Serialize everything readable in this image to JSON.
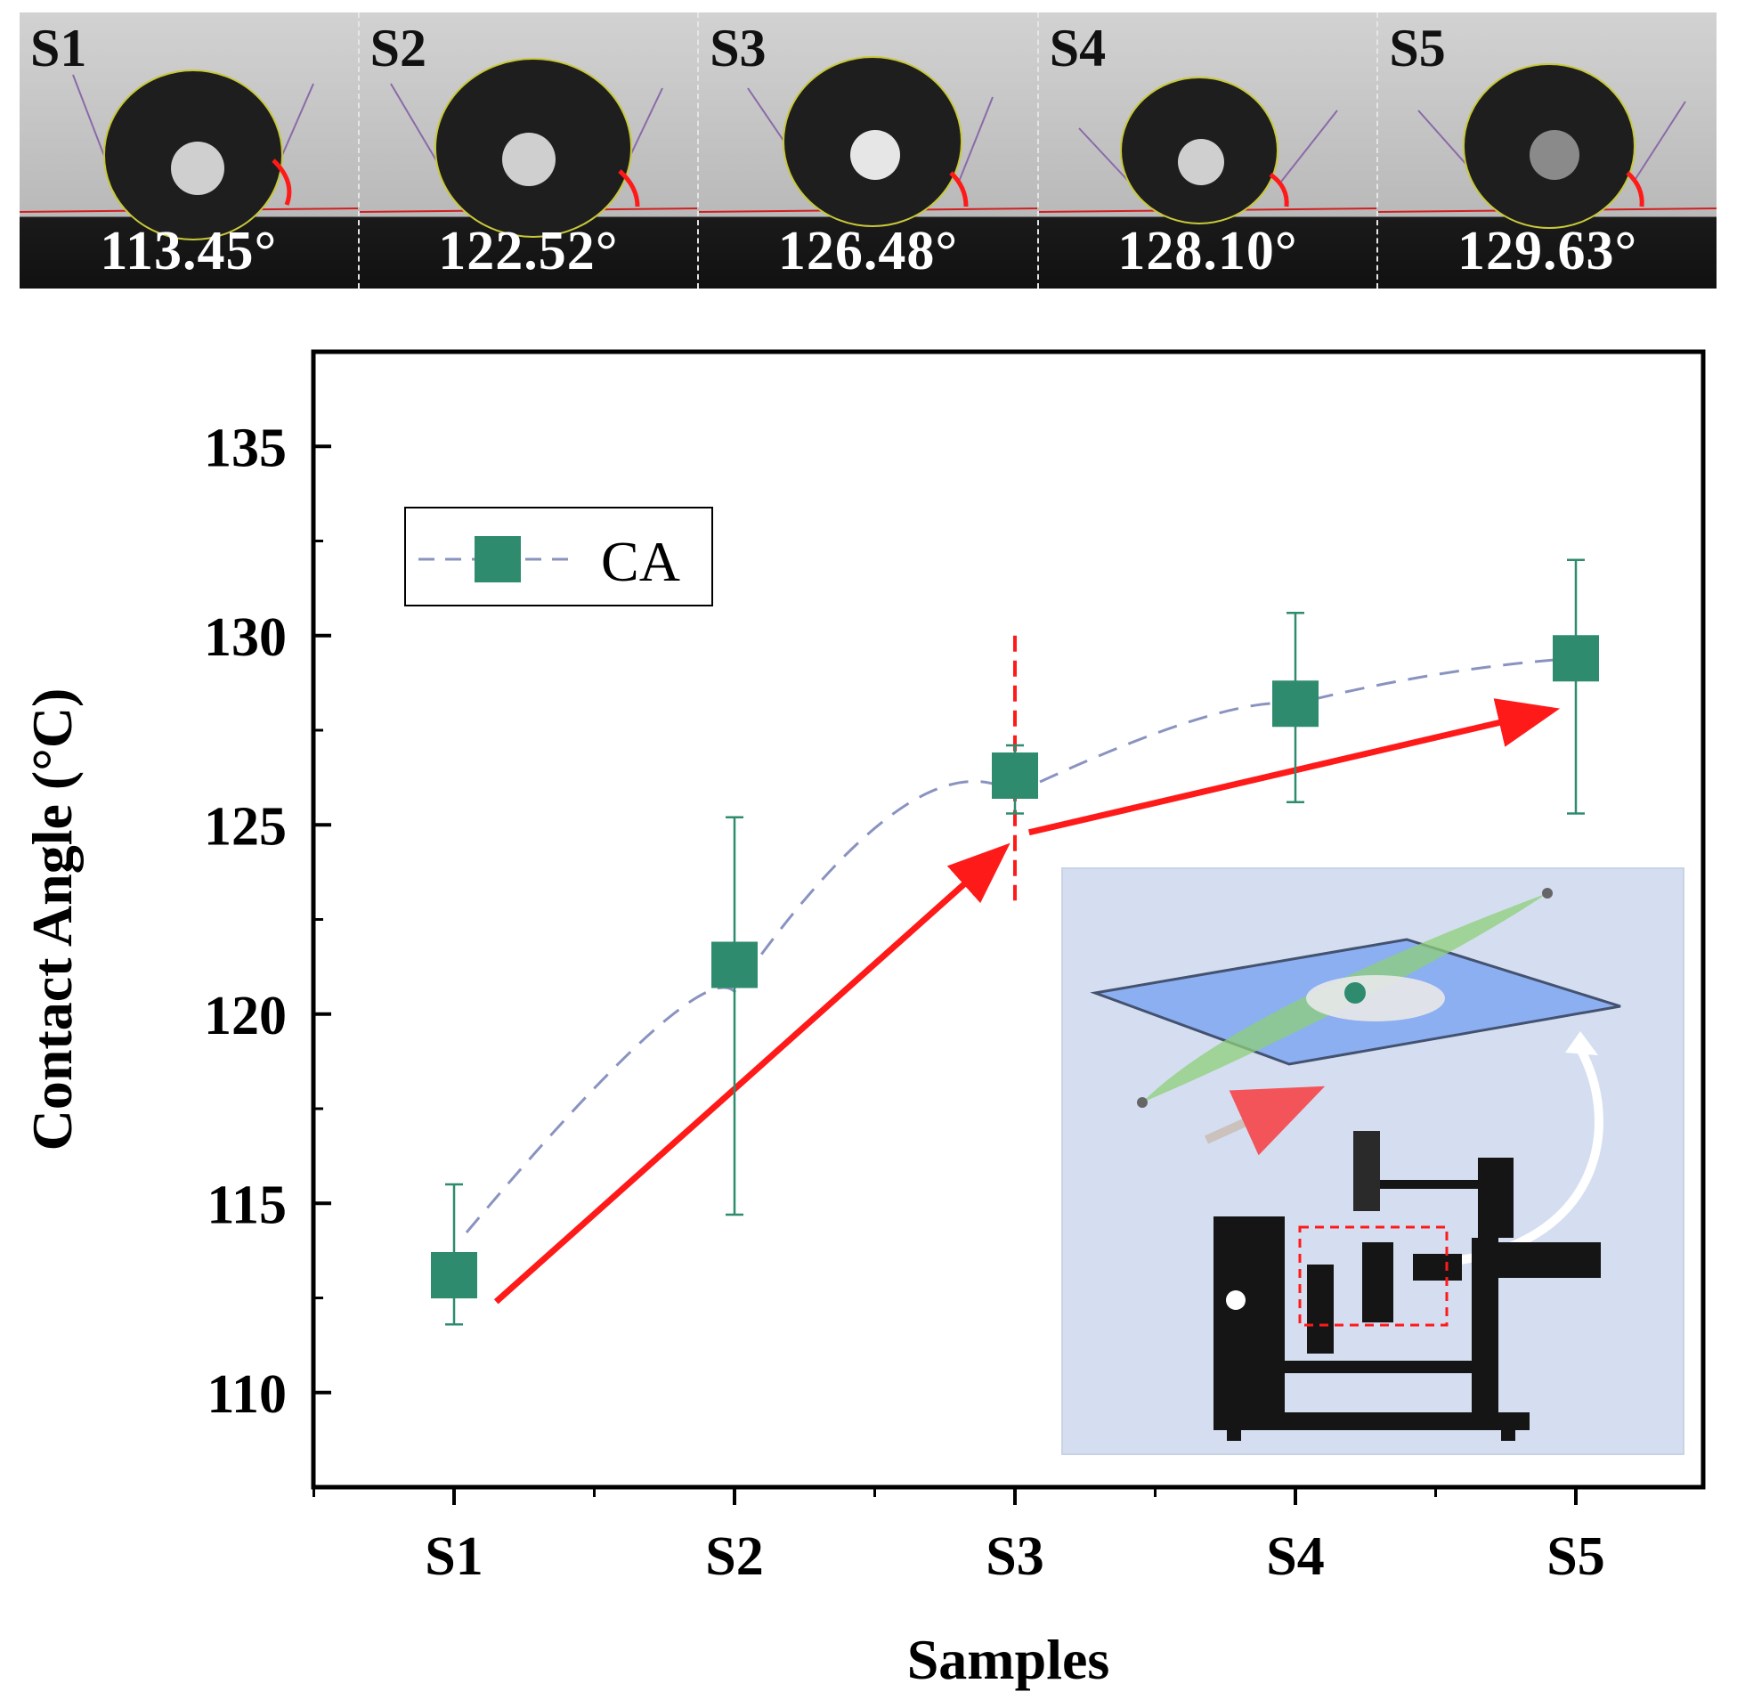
{
  "panels": [
    {
      "label": "S1",
      "angle_text": "113.45°"
    },
    {
      "label": "S2",
      "angle_text": "122.52°"
    },
    {
      "label": "S3",
      "angle_text": "126.48°"
    },
    {
      "label": "S4",
      "angle_text": "128.10°"
    },
    {
      "label": "S5",
      "angle_text": "129.63°"
    }
  ],
  "chart_data": {
    "type": "scatter",
    "title": "",
    "xlabel": "Samples",
    "ylabel": "Contact Angle (°C)",
    "categories": [
      "S1",
      "S2",
      "S3",
      "S4",
      "S5"
    ],
    "ylim": [
      107.5,
      137.5
    ],
    "yticks": [
      110,
      115,
      120,
      125,
      130,
      135
    ],
    "series": [
      {
        "name": "CA",
        "values": [
          113.1,
          121.3,
          126.3,
          128.2,
          129.4
        ],
        "error_low": [
          111.8,
          114.7,
          125.3,
          125.6,
          125.3
        ],
        "error_high": [
          115.5,
          125.2,
          127.1,
          130.6,
          132.0
        ],
        "color": "#2e8b6e",
        "line_color": "#8a93c0",
        "line_style": "dashed"
      }
    ],
    "annotations": {
      "arrow_color": "#ff1a1a",
      "arrow1": {
        "from": [
          1.15,
          112.4
        ],
        "to": [
          2.95,
          124.3
        ]
      },
      "arrow2": {
        "from": [
          3.05,
          124.8
        ],
        "to": [
          4.9,
          128.0
        ]
      },
      "divider": {
        "x": 3,
        "y_from": 123.0,
        "y_to": 130.0
      }
    },
    "legend": {
      "position": "top-left",
      "entries": [
        "CA"
      ]
    },
    "inset": {
      "description": "contact angle goniometer schematic",
      "position": "bottom-right"
    }
  }
}
